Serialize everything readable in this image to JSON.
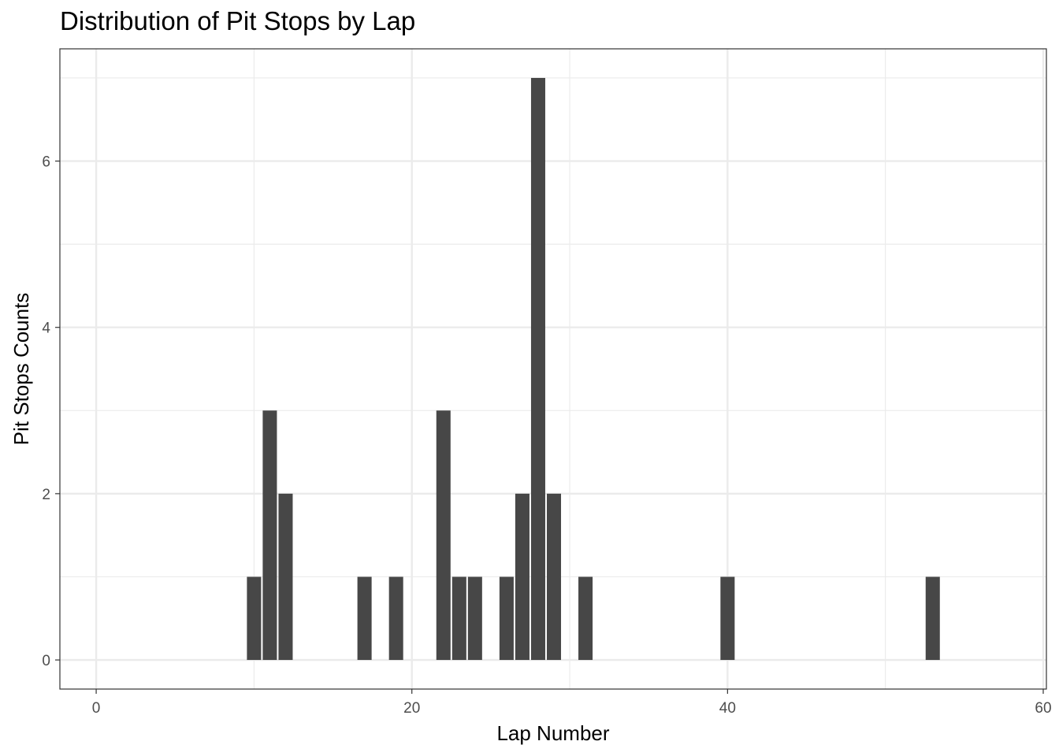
{
  "chart_data": {
    "type": "bar",
    "title": "Distribution of Pit Stops by Lap",
    "xlabel": "Lap Number",
    "ylabel": "Pit Stops Counts",
    "x": [
      10,
      11,
      12,
      17,
      19,
      22,
      23,
      24,
      26,
      27,
      28,
      29,
      31,
      40,
      53
    ],
    "values": [
      1,
      3,
      2,
      1,
      1,
      3,
      1,
      1,
      1,
      2,
      7,
      2,
      1,
      1,
      1
    ],
    "xlim": [
      -2.3,
      60.2
    ],
    "ylim": [
      -0.35,
      7.35
    ],
    "x_ticks": [
      0,
      20,
      40,
      60
    ],
    "y_ticks": [
      0,
      2,
      4,
      6
    ],
    "grid": true,
    "bar_color": "#474747",
    "grid_color": "#ebebeb",
    "panel_border_color": "#333333"
  }
}
